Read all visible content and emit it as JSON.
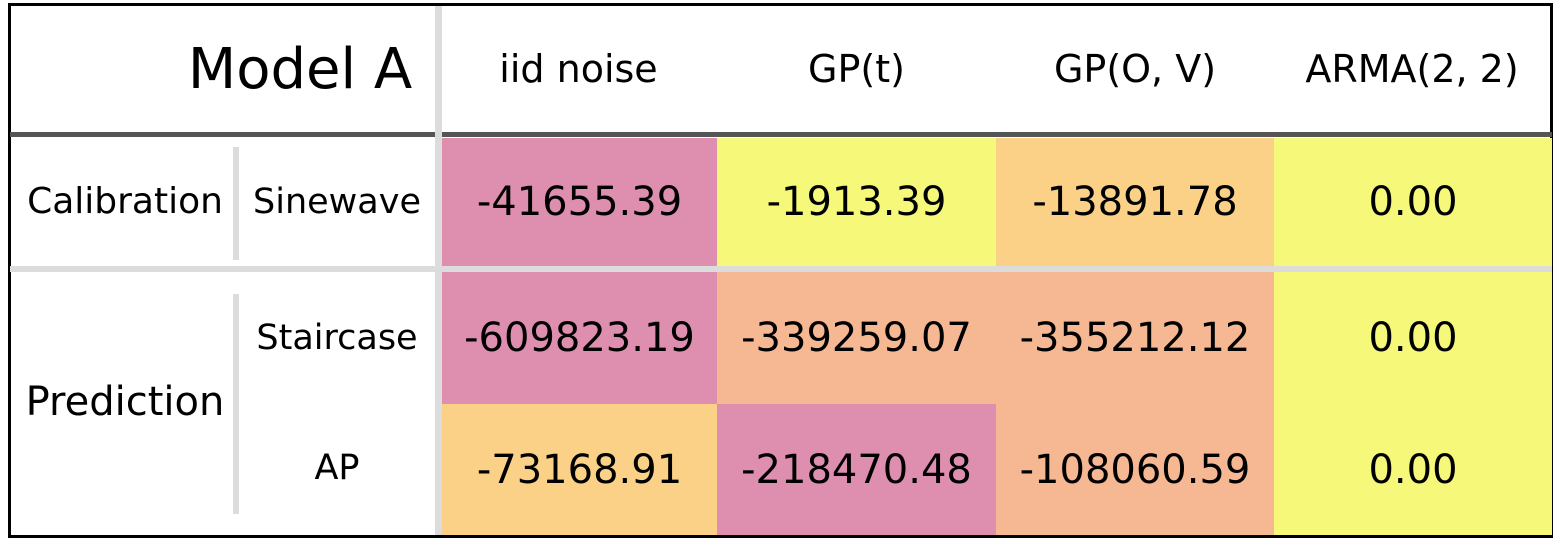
{
  "chart_data": {
    "type": "table",
    "title": "Model A",
    "columns": [
      "iid noise",
      "GP(t)",
      "GP(O, V)",
      "ARMA(2, 2)"
    ],
    "row_groups": [
      {
        "name": "Calibration",
        "rows": [
          "Sinewave"
        ]
      },
      {
        "name": "Prediction",
        "rows": [
          "Staircase",
          "AP"
        ]
      }
    ],
    "rows": [
      {
        "group": "Calibration",
        "label": "Sinewave",
        "values": [
          -41655.39,
          -1913.39,
          -13891.78,
          0.0
        ],
        "display": [
          "-41655.39",
          "-1913.39",
          "-13891.78",
          "0.00"
        ]
      },
      {
        "group": "Prediction",
        "label": "Staircase",
        "values": [
          -609823.19,
          -339259.07,
          -355212.12,
          0.0
        ],
        "display": [
          "-609823.19",
          "-339259.07",
          "-355212.12",
          "0.00"
        ]
      },
      {
        "group": "Prediction",
        "label": "AP",
        "values": [
          -73168.91,
          -218470.48,
          -108060.59,
          0.0
        ],
        "display": [
          "-73168.91",
          "-218470.48",
          "-108060.59",
          "0.00"
        ]
      }
    ],
    "cell_colors": [
      [
        "#de8eae",
        "#f5f878",
        "#fbd188",
        "#f5f878"
      ],
      [
        "#de8eae",
        "#f6b892",
        "#f6b892",
        "#f5f878"
      ],
      [
        "#fbd188",
        "#de8eae",
        "#f6b892",
        "#f5f878"
      ]
    ]
  }
}
